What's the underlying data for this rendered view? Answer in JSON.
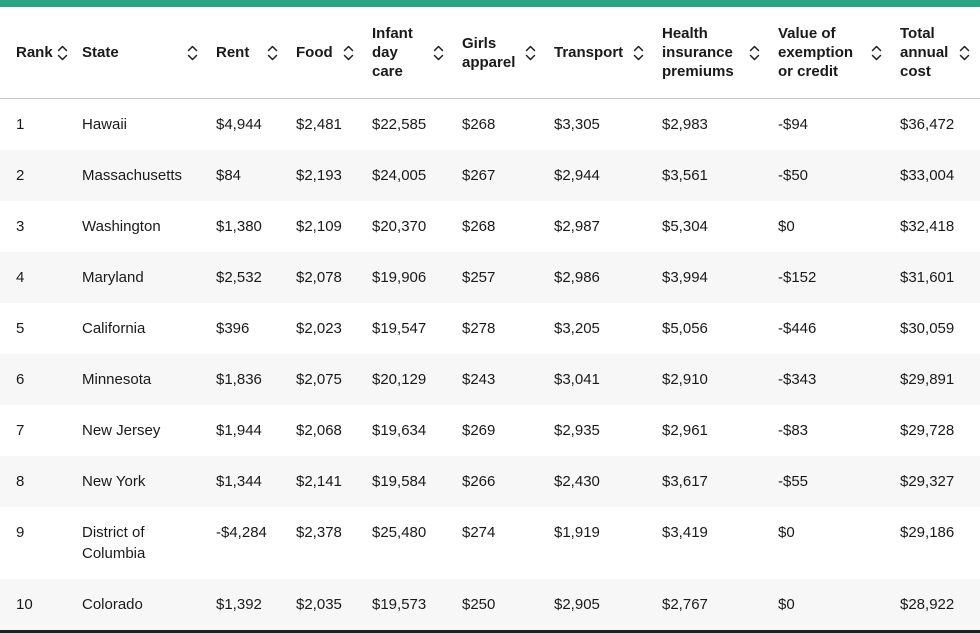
{
  "accent_color": "#2aa584",
  "chart_data": {
    "type": "table",
    "columns": [
      {
        "id": "rank",
        "label": "Rank",
        "sortable": true
      },
      {
        "id": "state",
        "label": "State",
        "sortable": true
      },
      {
        "id": "rent",
        "label": "Rent",
        "sortable": true
      },
      {
        "id": "food",
        "label": "Food",
        "sortable": true
      },
      {
        "id": "infant-day-care",
        "label": "Infant day care",
        "sortable": true
      },
      {
        "id": "girls-apparel",
        "label": "Girls apparel",
        "sortable": true
      },
      {
        "id": "transport",
        "label": "Transport",
        "sortable": true
      },
      {
        "id": "health-insurance-premiums",
        "label": "Health insurance premiums",
        "sortable": true
      },
      {
        "id": "value-of-exemption-or-credit",
        "label": "Value of exemption or credit",
        "sortable": true
      },
      {
        "id": "total-annual-cost",
        "label": "Total annual cost",
        "sortable": true
      }
    ],
    "rows": [
      [
        "1",
        "Hawaii",
        "$4,944",
        "$2,481",
        "$22,585",
        "$268",
        "$3,305",
        "$2,983",
        "-$94",
        "$36,472"
      ],
      [
        "2",
        "Massachusetts",
        "$84",
        "$2,193",
        "$24,005",
        "$267",
        "$2,944",
        "$3,561",
        "-$50",
        "$33,004"
      ],
      [
        "3",
        "Washington",
        "$1,380",
        "$2,109",
        "$20,370",
        "$268",
        "$2,987",
        "$5,304",
        "$0",
        "$32,418"
      ],
      [
        "4",
        "Maryland",
        "$2,532",
        "$2,078",
        "$19,906",
        "$257",
        "$2,986",
        "$3,994",
        "-$152",
        "$31,601"
      ],
      [
        "5",
        "California",
        "$396",
        "$2,023",
        "$19,547",
        "$278",
        "$3,205",
        "$5,056",
        "-$446",
        "$30,059"
      ],
      [
        "6",
        "Minnesota",
        "$1,836",
        "$2,075",
        "$20,129",
        "$243",
        "$3,041",
        "$2,910",
        "-$343",
        "$29,891"
      ],
      [
        "7",
        "New Jersey",
        "$1,944",
        "$2,068",
        "$19,634",
        "$269",
        "$2,935",
        "$2,961",
        "-$83",
        "$29,728"
      ],
      [
        "8",
        "New York",
        "$1,344",
        "$2,141",
        "$19,584",
        "$266",
        "$2,430",
        "$3,617",
        "-$55",
        "$29,327"
      ],
      [
        "9",
        "District of Columbia",
        "-$4,284",
        "$2,378",
        "$25,480",
        "$274",
        "$1,919",
        "$3,419",
        "$0",
        "$29,186"
      ],
      [
        "10",
        "Colorado",
        "$1,392",
        "$2,035",
        "$19,573",
        "$250",
        "$2,905",
        "$2,767",
        "$0",
        "$28,922"
      ]
    ]
  }
}
